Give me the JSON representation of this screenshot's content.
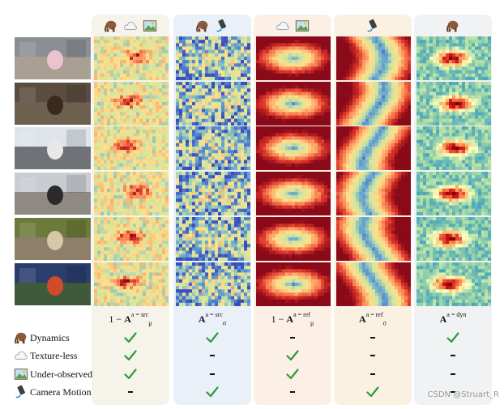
{
  "columns": [
    {
      "label_prefix": "1 − ",
      "label_main": "A",
      "label_sub": "μ",
      "label_sup": "a = src",
      "icons": [
        "mammoth-icon",
        "cloud-icon",
        "landscape-icon"
      ],
      "ramp": [
        "#3b4cc0",
        "#67a9cf",
        "#d1e5a0",
        "#fee08b",
        "#fc8d59",
        "#d73027",
        "#8b0a1a"
      ],
      "pattern": "blob"
    },
    {
      "label_prefix": "",
      "label_main": "A",
      "label_sub": "σ",
      "label_sup": "a = src",
      "icons": [
        "mammoth-icon",
        "phone-motion-icon"
      ],
      "ramp": [
        "#3b4cc0",
        "#67a9cf",
        "#d1e5a0",
        "#fee08b",
        "#fc8d59",
        "#d73027",
        "#8b0a1a"
      ],
      "pattern": "noise"
    },
    {
      "label_prefix": "1 − ",
      "label_main": "A",
      "label_sub": "μ",
      "label_sup": "a = ref",
      "icons": [
        "cloud-icon",
        "landscape-icon"
      ],
      "ramp": [
        "#3b4cc0",
        "#67a9cf",
        "#d1e5a0",
        "#fee08b",
        "#fc8d59",
        "#d73027",
        "#8b0a1a"
      ],
      "pattern": "ring"
    },
    {
      "label_prefix": "",
      "label_main": "A",
      "label_sub": "σ",
      "label_sup": "a = ref",
      "icons": [
        "phone-motion-icon"
      ],
      "ramp": [
        "#3b4cc0",
        "#67a9cf",
        "#d1e5a0",
        "#fee08b",
        "#fc8d59",
        "#d73027",
        "#8b0a1a"
      ],
      "pattern": "band"
    },
    {
      "label_prefix": "",
      "label_main": "A",
      "label_sub": "",
      "label_sup": "a = dyn",
      "icons": [
        "mammoth-icon"
      ],
      "ramp": [
        "#2c7bb6",
        "#3e9fc0",
        "#abdda4",
        "#ffffbf",
        "#fdae61",
        "#d7191c",
        "#7f0000"
      ],
      "pattern": "center"
    }
  ],
  "rows": [
    {
      "label": "Dynamics",
      "icon": "mammoth-icon",
      "marks": [
        "check",
        "check",
        "dash",
        "dash",
        "check"
      ]
    },
    {
      "label": "Texture-less",
      "icon": "cloud-icon",
      "marks": [
        "check",
        "dash",
        "check",
        "dash",
        "dash"
      ]
    },
    {
      "label": "Under-observed",
      "icon": "landscape-icon",
      "marks": [
        "check",
        "dash",
        "check",
        "dash",
        "dash"
      ]
    },
    {
      "label": "Camera Motion",
      "icon": "phone-motion-icon",
      "marks": [
        "dash",
        "check",
        "dash",
        "check",
        "dash"
      ]
    }
  ],
  "photos": [
    {
      "name": "photo-dancer",
      "sky": "#8b8f95",
      "ground": "#a99f92",
      "subject": "#e9c3cf"
    },
    {
      "name": "photo-bear",
      "sky": "#5a4d40",
      "ground": "#6e604f",
      "subject": "#3a2a1e"
    },
    {
      "name": "photo-car-street",
      "sky": "#dfe4ea",
      "ground": "#6f7378",
      "subject": "#e8e8e8"
    },
    {
      "name": "photo-hiker",
      "sky": "#c9cdd2",
      "ground": "#8e8a83",
      "subject": "#2b2b2b"
    },
    {
      "name": "photo-swing",
      "sky": "#6c7a3a",
      "ground": "#8d7f6a",
      "subject": "#d8c7a8"
    },
    {
      "name": "photo-playground",
      "sky": "#2a3e6e",
      "ground": "#3e5a3a",
      "subject": "#d24a2a"
    }
  ],
  "watermark": "CSDN @Struart_R",
  "colors": {
    "check": "#2e9a3a",
    "dash": "#111111"
  }
}
